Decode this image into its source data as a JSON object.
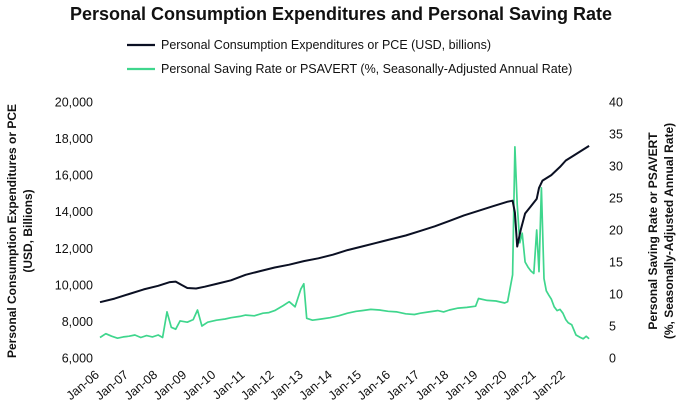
{
  "chart_data": {
    "type": "line",
    "title": "Personal Consumption Expenditures and Personal Saving Rate",
    "ylabel_left": [
      "Personal Consumption Expenditures or PCE",
      "(USD, Billions)"
    ],
    "ylabel_right": [
      "Personal Saving Rate or PSAVERT",
      "(%, Seasonally-Adjusted Annual Rate)"
    ],
    "xlim": [
      2006.0,
      2022.83
    ],
    "ylim_left": [
      6000,
      20000
    ],
    "ylim_right": [
      0,
      40
    ],
    "yticks_left": [
      "6,000",
      "8,000",
      "10,000",
      "12,000",
      "14,000",
      "16,000",
      "18,000",
      "20,000"
    ],
    "yticks_right": [
      "0",
      "5",
      "10",
      "15",
      "20",
      "25",
      "30",
      "35",
      "40"
    ],
    "xticks": [
      {
        "x": 2006,
        "label": "Jan-06"
      },
      {
        "x": 2007,
        "label": "Jan-07"
      },
      {
        "x": 2008,
        "label": "Jan-08"
      },
      {
        "x": 2009,
        "label": "Jan-09"
      },
      {
        "x": 2010,
        "label": "Jan-10"
      },
      {
        "x": 2011,
        "label": "Jan-11"
      },
      {
        "x": 2012,
        "label": "Jan-12"
      },
      {
        "x": 2013,
        "label": "Jan-13"
      },
      {
        "x": 2014,
        "label": "Jan-14"
      },
      {
        "x": 2015,
        "label": "Jan-15"
      },
      {
        "x": 2016,
        "label": "Jan-16"
      },
      {
        "x": 2017,
        "label": "Jan-17"
      },
      {
        "x": 2018,
        "label": "Jan-18"
      },
      {
        "x": 2019,
        "label": "Jan-19"
      },
      {
        "x": 2020,
        "label": "Jan-20"
      },
      {
        "x": 2021,
        "label": "Jan-21"
      },
      {
        "x": 2022,
        "label": "Jan-22"
      }
    ],
    "legend_position": "top-center",
    "grid": false,
    "series": [
      {
        "name": "Personal Consumption Expenditures or PCE (USD, billions)",
        "axis": "left",
        "color": "#0b1023",
        "points": [
          [
            2006.0,
            9050
          ],
          [
            2006.5,
            9250
          ],
          [
            2007.0,
            9500
          ],
          [
            2007.5,
            9750
          ],
          [
            2008.0,
            9950
          ],
          [
            2008.4,
            10150
          ],
          [
            2008.6,
            10180
          ],
          [
            2008.8,
            10000
          ],
          [
            2009.0,
            9830
          ],
          [
            2009.3,
            9800
          ],
          [
            2009.6,
            9900
          ],
          [
            2010.0,
            10050
          ],
          [
            2010.5,
            10250
          ],
          [
            2011.0,
            10550
          ],
          [
            2011.5,
            10750
          ],
          [
            2012.0,
            10950
          ],
          [
            2012.5,
            11100
          ],
          [
            2013.0,
            11300
          ],
          [
            2013.5,
            11450
          ],
          [
            2014.0,
            11650
          ],
          [
            2014.5,
            11900
          ],
          [
            2015.0,
            12100
          ],
          [
            2015.5,
            12300
          ],
          [
            2016.0,
            12500
          ],
          [
            2016.5,
            12700
          ],
          [
            2017.0,
            12950
          ],
          [
            2017.5,
            13200
          ],
          [
            2018.0,
            13500
          ],
          [
            2018.5,
            13800
          ],
          [
            2019.0,
            14050
          ],
          [
            2019.5,
            14300
          ],
          [
            2020.0,
            14550
          ],
          [
            2020.17,
            14600
          ],
          [
            2020.25,
            13950
          ],
          [
            2020.33,
            12100
          ],
          [
            2020.45,
            13000
          ],
          [
            2020.6,
            13900
          ],
          [
            2020.8,
            14300
          ],
          [
            2021.0,
            14700
          ],
          [
            2021.08,
            15300
          ],
          [
            2021.2,
            15700
          ],
          [
            2021.5,
            16000
          ],
          [
            2021.8,
            16450
          ],
          [
            2022.0,
            16800
          ],
          [
            2022.3,
            17100
          ],
          [
            2022.6,
            17400
          ],
          [
            2022.8,
            17600
          ]
        ]
      },
      {
        "name": "Personal Saving Rate or PSAVERT (%, Seasonally-Adjusted Annual Rate)",
        "axis": "right",
        "color": "#3fd68d",
        "points": [
          [
            2006.0,
            3.2
          ],
          [
            2006.2,
            3.8
          ],
          [
            2006.4,
            3.4
          ],
          [
            2006.6,
            3.1
          ],
          [
            2006.8,
            3.3
          ],
          [
            2007.0,
            3.4
          ],
          [
            2007.2,
            3.6
          ],
          [
            2007.4,
            3.2
          ],
          [
            2007.6,
            3.5
          ],
          [
            2007.8,
            3.3
          ],
          [
            2008.0,
            3.6
          ],
          [
            2008.15,
            3.2
          ],
          [
            2008.3,
            7.2
          ],
          [
            2008.45,
            4.8
          ],
          [
            2008.6,
            4.5
          ],
          [
            2008.75,
            5.8
          ],
          [
            2009.0,
            5.6
          ],
          [
            2009.2,
            6.0
          ],
          [
            2009.35,
            7.5
          ],
          [
            2009.5,
            5.0
          ],
          [
            2009.7,
            5.6
          ],
          [
            2010.0,
            5.9
          ],
          [
            2010.3,
            6.1
          ],
          [
            2010.5,
            6.3
          ],
          [
            2010.8,
            6.5
          ],
          [
            2011.0,
            6.7
          ],
          [
            2011.3,
            6.6
          ],
          [
            2011.6,
            7.0
          ],
          [
            2011.8,
            7.1
          ],
          [
            2012.0,
            7.4
          ],
          [
            2012.3,
            8.2
          ],
          [
            2012.5,
            8.8
          ],
          [
            2012.7,
            8.0
          ],
          [
            2012.9,
            10.8
          ],
          [
            2013.0,
            11.6
          ],
          [
            2013.1,
            6.2
          ],
          [
            2013.3,
            5.9
          ],
          [
            2013.6,
            6.1
          ],
          [
            2013.9,
            6.3
          ],
          [
            2014.2,
            6.6
          ],
          [
            2014.5,
            7.0
          ],
          [
            2014.8,
            7.3
          ],
          [
            2015.0,
            7.4
          ],
          [
            2015.3,
            7.6
          ],
          [
            2015.6,
            7.5
          ],
          [
            2015.9,
            7.3
          ],
          [
            2016.2,
            7.2
          ],
          [
            2016.5,
            6.9
          ],
          [
            2016.8,
            6.8
          ],
          [
            2017.0,
            7.0
          ],
          [
            2017.3,
            7.2
          ],
          [
            2017.6,
            7.4
          ],
          [
            2017.8,
            7.2
          ],
          [
            2018.0,
            7.5
          ],
          [
            2018.3,
            7.8
          ],
          [
            2018.6,
            7.9
          ],
          [
            2018.9,
            8.1
          ],
          [
            2019.0,
            9.3
          ],
          [
            2019.3,
            9.0
          ],
          [
            2019.6,
            8.9
          ],
          [
            2019.9,
            8.6
          ],
          [
            2020.0,
            8.8
          ],
          [
            2020.17,
            13.0
          ],
          [
            2020.25,
            33.0
          ],
          [
            2020.33,
            24.0
          ],
          [
            2020.42,
            18.0
          ],
          [
            2020.5,
            19.5
          ],
          [
            2020.6,
            15.0
          ],
          [
            2020.7,
            14.2
          ],
          [
            2020.8,
            13.6
          ],
          [
            2020.9,
            13.2
          ],
          [
            2021.0,
            20.0
          ],
          [
            2021.08,
            13.5
          ],
          [
            2021.16,
            26.6
          ],
          [
            2021.25,
            12.4
          ],
          [
            2021.33,
            10.5
          ],
          [
            2021.42,
            9.8
          ],
          [
            2021.5,
            9.2
          ],
          [
            2021.6,
            8.0
          ],
          [
            2021.7,
            7.4
          ],
          [
            2021.8,
            7.6
          ],
          [
            2021.9,
            7.0
          ],
          [
            2022.0,
            6.0
          ],
          [
            2022.08,
            5.5
          ],
          [
            2022.2,
            5.2
          ],
          [
            2022.35,
            3.6
          ],
          [
            2022.5,
            3.2
          ],
          [
            2022.6,
            3.0
          ],
          [
            2022.7,
            3.4
          ],
          [
            2022.8,
            3.0
          ]
        ]
      }
    ]
  }
}
